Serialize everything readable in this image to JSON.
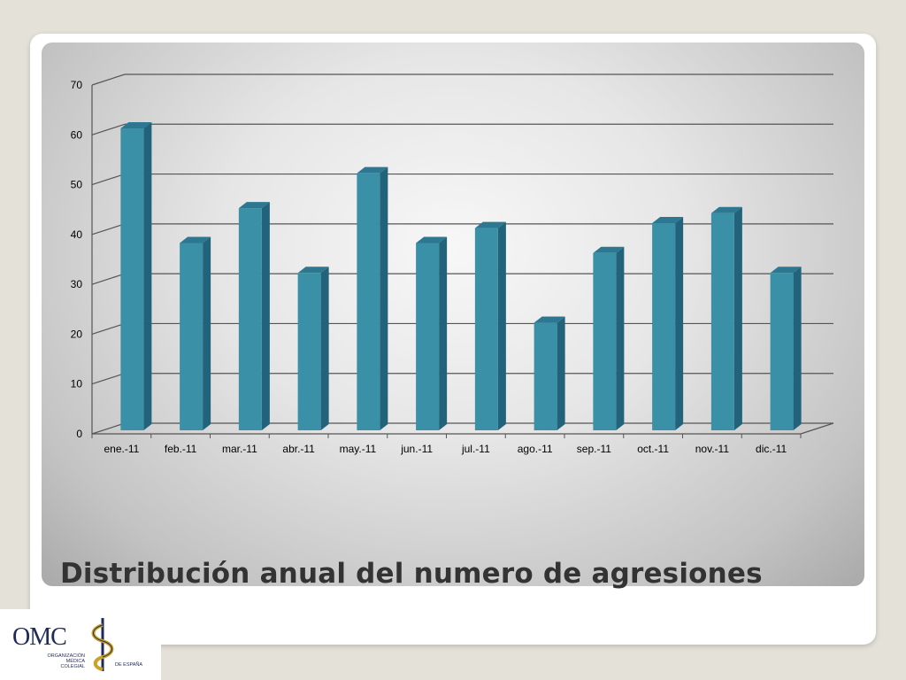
{
  "slide": {
    "title": "Distribución anual del numero de agresiones"
  },
  "logo": {
    "acronym": "OMC",
    "line1": "ORGANIZACIÓN",
    "line2": "MÉDICA",
    "line3": "COLEGIAL",
    "line4": "DE ESPAÑA"
  },
  "colors": {
    "bar_front": "#3990a7",
    "bar_side": "#22627a",
    "bar_top": "#2d7890"
  },
  "chart_data": {
    "type": "bar",
    "title": "",
    "xlabel": "",
    "ylabel": "",
    "categories": [
      "ene.-11",
      "feb.-11",
      "mar.-11",
      "abr.-11",
      "may.-11",
      "jun.-11",
      "jul.-11",
      "ago.-11",
      "sep.-11",
      "oct.-11",
      "nov.-11",
      "dic.-11"
    ],
    "values": [
      62,
      39,
      46,
      33,
      53,
      39,
      42,
      23,
      37,
      43,
      45,
      33
    ],
    "ylim": [
      0,
      70
    ],
    "yticks": [
      0,
      10,
      20,
      30,
      40,
      50,
      60,
      70
    ],
    "grid": true,
    "legend": "none",
    "style": "3d-column"
  }
}
